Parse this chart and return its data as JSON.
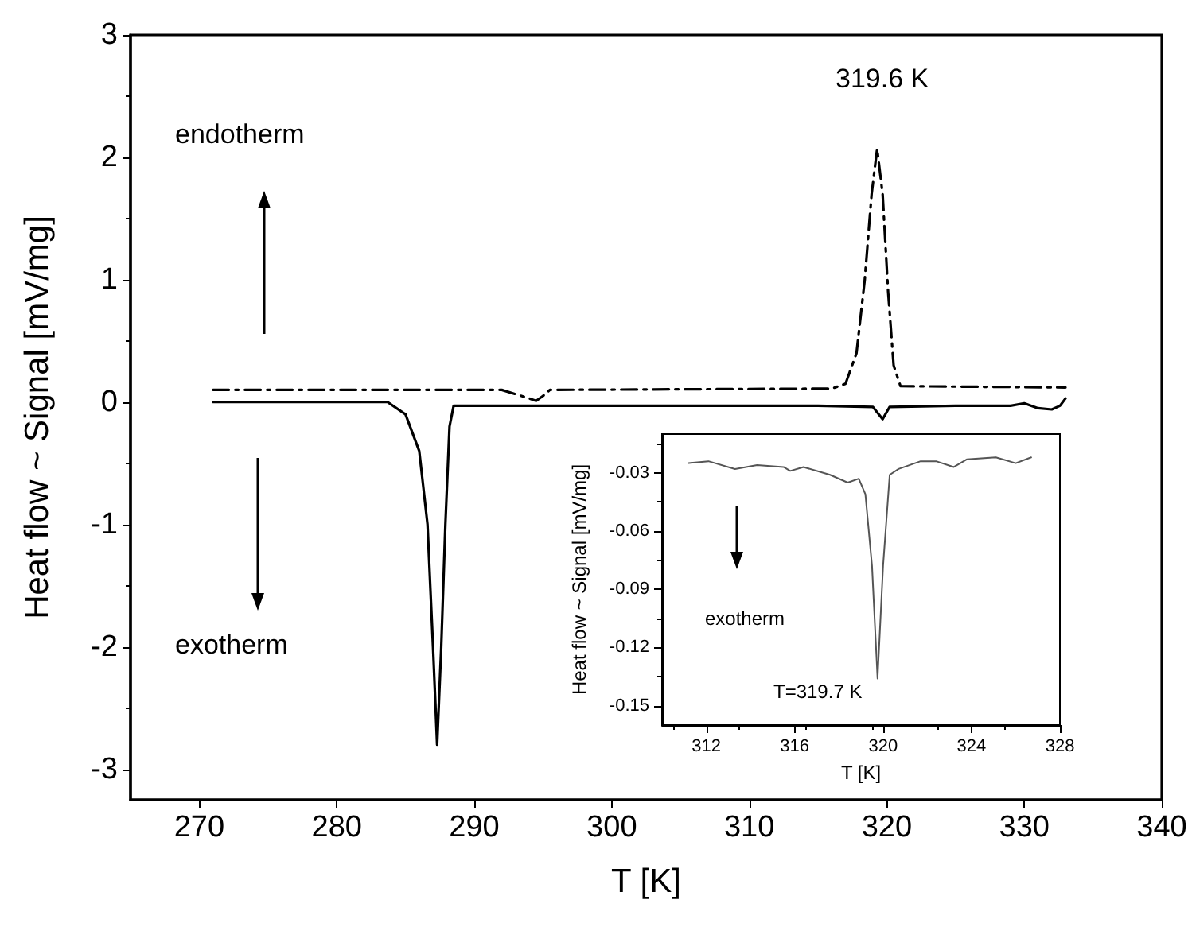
{
  "chart_data": [
    {
      "type": "line",
      "xlabel": "T [K]",
      "ylabel": "Heat flow ~ Signal [mV/mg]",
      "xlim": [
        265,
        340
      ],
      "xticks": [
        270,
        280,
        290,
        300,
        310,
        320,
        330,
        340
      ],
      "ylim": [
        -3.25,
        3
      ],
      "yticks": [
        -3,
        -2,
        -1,
        0,
        1,
        2,
        3
      ],
      "grid": false,
      "marker": "none",
      "series": [
        {
          "color": "#000000",
          "line_style": "solid",
          "x": [
            271,
            275,
            280,
            283.7,
            285,
            286,
            286.6,
            287,
            287.3,
            287.6,
            287.9,
            288.2,
            288.5,
            295,
            305,
            315,
            319,
            319.7,
            320.2,
            325,
            329,
            330,
            331,
            332,
            332.6,
            333
          ],
          "values": [
            0,
            0,
            0,
            0,
            -0.1,
            -0.4,
            -1.0,
            -2.0,
            -2.8,
            -2.0,
            -1.0,
            -0.2,
            -0.03,
            -0.03,
            -0.03,
            -0.03,
            -0.04,
            -0.14,
            -0.04,
            -0.03,
            -0.03,
            -0.01,
            -0.05,
            -0.06,
            -0.03,
            0.03
          ]
        },
        {
          "color": "#000000",
          "line_style": "dashed",
          "x": [
            271,
            292,
            294,
            294.5,
            295,
            295.5,
            316,
            317,
            317.8,
            318.4,
            318.9,
            319.3,
            319.7,
            320.1,
            320.5,
            321,
            333
          ],
          "values": [
            0.1,
            0.1,
            0.03,
            0.01,
            0.05,
            0.1,
            0.11,
            0.15,
            0.4,
            1.0,
            1.7,
            2.07,
            1.7,
            0.9,
            0.3,
            0.13,
            0.12
          ]
        }
      ],
      "annotations": [
        "319.6 K",
        "endotherm",
        "exotherm"
      ]
    },
    {
      "type": "line",
      "xlabel": "T [K]",
      "ylabel": "Heat flow ~ Signal [mV/mg]",
      "xlim": [
        310,
        328
      ],
      "xticks": [
        312,
        316,
        320,
        324,
        328
      ],
      "ylim": [
        -0.16,
        -0.01
      ],
      "yticks": [
        -0.03,
        -0.06,
        -0.09,
        -0.12,
        -0.15
      ],
      "grid": false,
      "marker": "none",
      "series": [
        {
          "color": "#555555",
          "line_style": "solid",
          "x": [
            311.2,
            312.1,
            313.3,
            314.3,
            315.5,
            315.8,
            316.4,
            317.6,
            318.4,
            318.9,
            319.2,
            319.5,
            319.75,
            320.0,
            320.3,
            320.7,
            321.7,
            322.4,
            323.2,
            323.8,
            325.1,
            326.0,
            326.7
          ],
          "values": [
            -0.025,
            -0.024,
            -0.028,
            -0.026,
            -0.027,
            -0.029,
            -0.027,
            -0.031,
            -0.035,
            -0.033,
            -0.041,
            -0.078,
            -0.136,
            -0.078,
            -0.031,
            -0.028,
            -0.024,
            -0.024,
            -0.027,
            -0.023,
            -0.022,
            -0.025,
            -0.022
          ]
        }
      ],
      "annotations": [
        "T=319.7 K",
        "exotherm"
      ]
    }
  ]
}
